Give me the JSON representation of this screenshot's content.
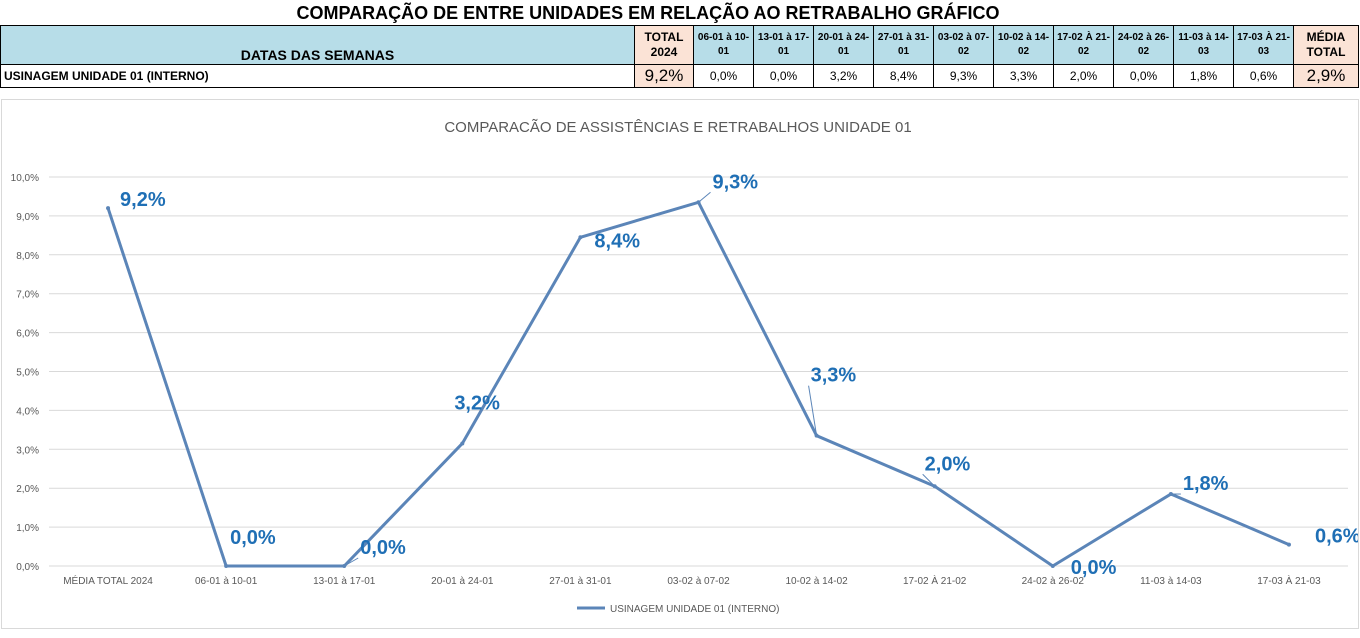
{
  "sheet_title": "COMPARAÇÃO DE ENTRE UNIDADES EM RELAÇÃO AO RETRABALHO GRÁFICO",
  "table": {
    "header_label": "DATAS DAS SEMANAS",
    "total_header": [
      "TOTAL",
      "2024"
    ],
    "week_headers": [
      [
        "06-01 à 10-",
        "01"
      ],
      [
        "13-01 à 17-",
        "01"
      ],
      [
        "20-01 à 24-",
        "01"
      ],
      [
        "27-01 à 31-",
        "01"
      ],
      [
        "03-02 à 07-",
        "02"
      ],
      [
        "10-02 à 14-",
        "02"
      ],
      [
        "17-02 À 21-",
        "02"
      ],
      [
        "24-02 à 26-",
        "02"
      ],
      [
        "11-03 à 14-",
        "03"
      ],
      [
        "17-03 À 21-",
        "03"
      ]
    ],
    "media_header": [
      "MÉDIA",
      "TOTAL"
    ],
    "row_label": "USINAGEM UNIDADE 01 (INTERNO)",
    "row_total": "9,2%",
    "row_values": [
      "0,0%",
      "0,0%",
      "3,2%",
      "8,4%",
      "9,3%",
      "3,3%",
      "2,0%",
      "0,0%",
      "1,8%",
      "0,6%"
    ],
    "row_media": "2,9%",
    "colors": {
      "header_bg": "#b7dde8",
      "total_bg": "#fbe3d6"
    }
  },
  "chart_data": {
    "type": "line",
    "title": "COMPARACÃO DE ASSISTÊNCIAS E RETRABALHOS UNIDADE 01",
    "categories": [
      "MÉDIA TOTAL 2024",
      "06-01 à 10-01",
      "13-01 à 17-01",
      "20-01 à 24-01",
      "27-01 à 31-01",
      "03-02 à 07-02",
      "10-02 à 14-02",
      "17-02 À 21-02",
      "24-02 à 26-02",
      "11-03 à 14-03",
      "17-03 À 21-03"
    ],
    "series": [
      {
        "name": "USINAGEM UNIDADE 01 (INTERNO)",
        "values": [
          9.2,
          0.0,
          0.0,
          3.15,
          8.45,
          9.35,
          3.35,
          2.05,
          0.0,
          1.85,
          0.55
        ],
        "labels": [
          "9,2%",
          "0,0%",
          "0,0%",
          "3,2%",
          "8,4%",
          "9,3%",
          "3,3%",
          "2,0%",
          "0,0%",
          "1,8%",
          "0,6%"
        ],
        "color": "#5b85b8"
      }
    ],
    "y_ticks": [
      "0,0%",
      "1,0%",
      "2,0%",
      "3,0%",
      "4,0%",
      "5,0%",
      "6,0%",
      "7,0%",
      "8,0%",
      "9,0%",
      "10,0%"
    ],
    "ylim": [
      0,
      10
    ],
    "grid": true,
    "legend": "bottom",
    "label_color": "#1f6fb5"
  }
}
